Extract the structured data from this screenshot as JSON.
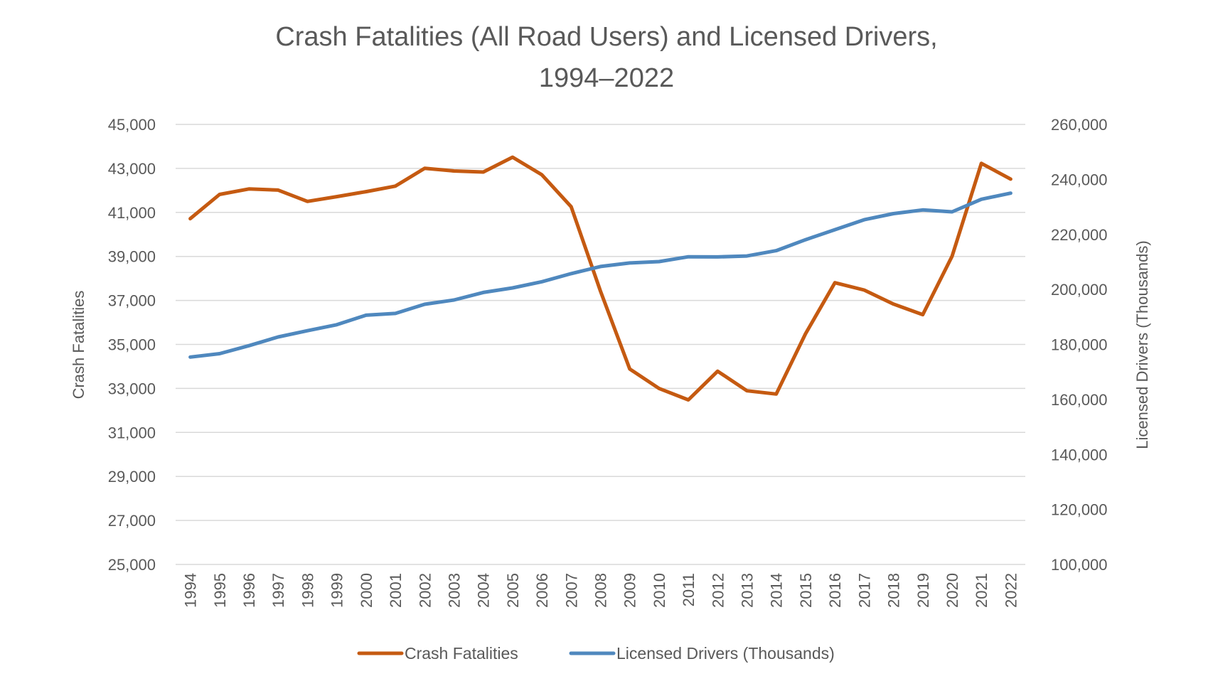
{
  "chart_data": {
    "type": "line",
    "title_lines": [
      "Crash Fatalities (All Road Users) and Licensed Drivers,",
      "1994–2022"
    ],
    "xlabel": "",
    "ylabel": "Crash Fatalities",
    "y2label": "Licensed Drivers (Thousands)",
    "ylim": [
      25000,
      45000
    ],
    "y2lim": [
      100000,
      260000
    ],
    "yticks": [
      "25,000",
      "27,000",
      "29,000",
      "31,000",
      "33,000",
      "35,000",
      "37,000",
      "39,000",
      "41,000",
      "43,000",
      "45,000"
    ],
    "y2ticks": [
      "100,000",
      "120,000",
      "140,000",
      "160,000",
      "180,000",
      "200,000",
      "220,000",
      "240,000",
      "260,000"
    ],
    "grid": true,
    "legend": "bottom",
    "categories": [
      "1994",
      "1995",
      "1996",
      "1997",
      "1998",
      "1999",
      "2000",
      "2001",
      "2002",
      "2003",
      "2004",
      "2005",
      "2006",
      "2007",
      "2008",
      "2009",
      "2010",
      "2011",
      "2012",
      "2013",
      "2014",
      "2015",
      "2016",
      "2017",
      "2018",
      "2019",
      "2020",
      "2021",
      "2022"
    ],
    "series": [
      {
        "name": "Crash Fatalities",
        "axis": "left",
        "color": "#C55A11",
        "values": [
          40716,
          41817,
          42065,
          42013,
          41501,
          41717,
          41945,
          42196,
          43005,
          42884,
          42836,
          43510,
          42708,
          41259,
          37423,
          33883,
          32999,
          32479,
          33782,
          32893,
          32744,
          35484,
          37806,
          37473,
          36835,
          36355,
          39007,
          43230,
          42514
        ]
      },
      {
        "name": "Licensed Drivers (Thousands)",
        "axis": "right",
        "color": "#4F88BE",
        "values": [
          175403,
          176628,
          179539,
          182709,
          184980,
          187170,
          190625,
          191276,
          194602,
          196166,
          198889,
          200549,
          202810,
          205742,
          208321,
          209618,
          210115,
          211875,
          211815,
          212160,
          214092,
          218084,
          221712,
          225346,
          227558,
          228916,
          228196,
          232784,
          235000
        ]
      }
    ]
  }
}
